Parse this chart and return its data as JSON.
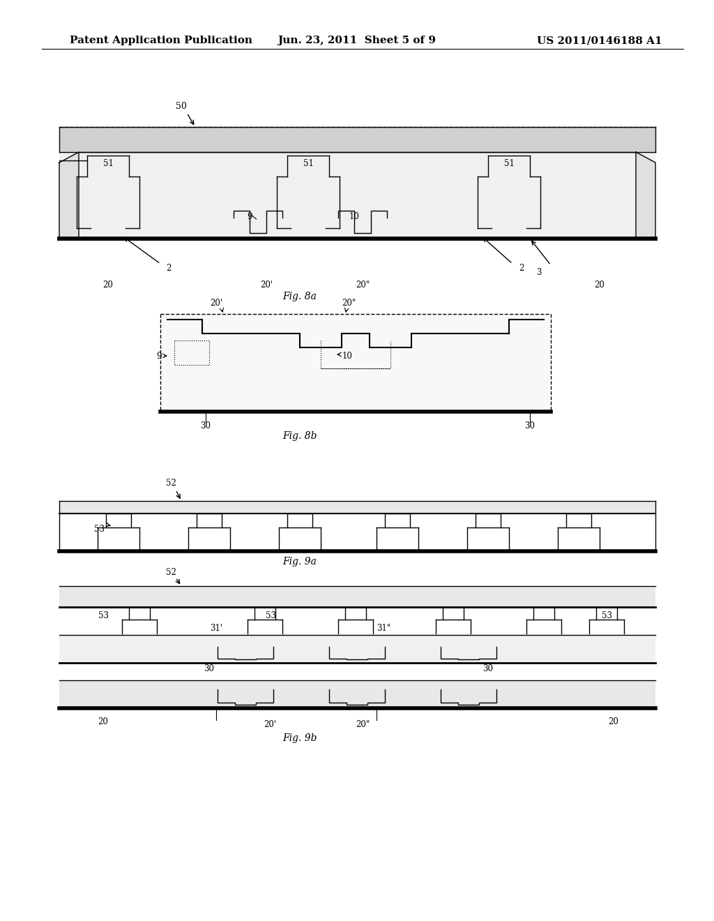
{
  "bg_color": "#ffffff",
  "header_text_left": "Patent Application Publication",
  "header_text_mid": "Jun. 23, 2011  Sheet 5 of 9",
  "header_text_right": "US 2011/0146188 A1",
  "header_fontsize": 11,
  "fig8a_label": "Fig. 8a",
  "fig8b_label": "Fig. 8b",
  "fig9a_label": "Fig. 9a",
  "fig9b_label": "Fig. 9b"
}
